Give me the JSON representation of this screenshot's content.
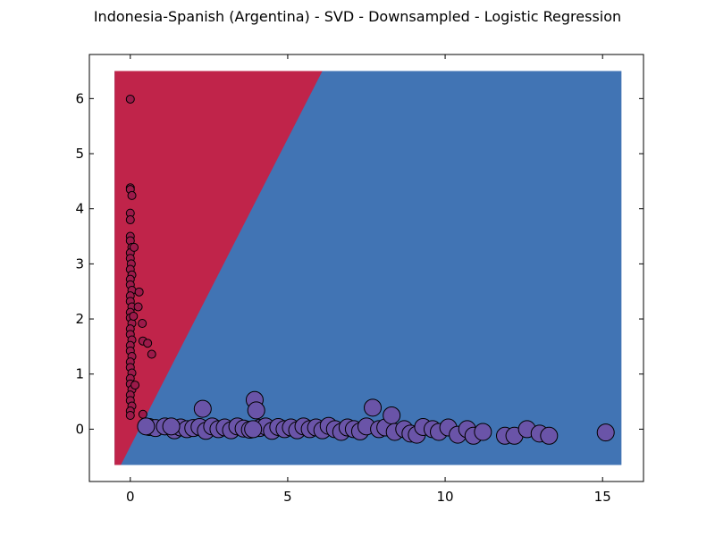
{
  "chart_data": {
    "type": "scatter",
    "title": "Indonesia-Spanish (Argentina) - SVD - Downsampled - Logistic Regression",
    "xlabel": "",
    "ylabel": "",
    "xlim": [
      -1.3,
      16.3
    ],
    "ylim": [
      -0.95,
      6.8
    ],
    "xticks": [
      0,
      5,
      10,
      15
    ],
    "yticks": [
      0,
      1,
      2,
      3,
      4,
      5,
      6
    ],
    "grid": false,
    "decision_regions": {
      "extent": {
        "x": [
          -0.5,
          15.6
        ],
        "y": [
          -0.65,
          6.5
        ]
      },
      "boundary": [
        [
          -0.3,
          -0.65
        ],
        [
          6.1,
          6.5
        ]
      ],
      "left_region_color": "#c0244a",
      "right_region_color": "#4174b4"
    },
    "series": [
      {
        "color": "#9c1a4a",
        "points": [
          [
            0.0,
            5.99
          ],
          [
            0.0,
            4.38
          ],
          [
            0.0,
            4.35
          ],
          [
            0.05,
            4.24
          ],
          [
            0.0,
            3.92
          ],
          [
            0.0,
            3.8
          ],
          [
            0.0,
            3.5
          ],
          [
            0.0,
            3.42
          ],
          [
            0.05,
            3.3
          ],
          [
            0.0,
            3.2
          ],
          [
            0.0,
            3.1
          ],
          [
            0.03,
            3.0
          ],
          [
            0.0,
            2.9
          ],
          [
            0.05,
            2.8
          ],
          [
            0.0,
            2.72
          ],
          [
            0.0,
            2.62
          ],
          [
            0.05,
            2.52
          ],
          [
            0.0,
            2.42
          ],
          [
            0.0,
            2.32
          ],
          [
            0.05,
            2.22
          ],
          [
            0.0,
            2.12
          ],
          [
            0.0,
            2.02
          ],
          [
            0.05,
            1.92
          ],
          [
            0.0,
            1.82
          ],
          [
            0.0,
            1.72
          ],
          [
            0.05,
            1.62
          ],
          [
            0.0,
            1.52
          ],
          [
            0.0,
            1.42
          ],
          [
            0.05,
            1.32
          ],
          [
            0.0,
            1.22
          ],
          [
            0.0,
            1.12
          ],
          [
            0.05,
            1.02
          ],
          [
            0.0,
            0.92
          ],
          [
            0.0,
            0.82
          ],
          [
            0.05,
            0.72
          ],
          [
            0.0,
            0.62
          ],
          [
            0.0,
            0.52
          ],
          [
            0.05,
            0.42
          ],
          [
            0.0,
            0.33
          ],
          [
            0.0,
            0.25
          ],
          [
            0.28,
            2.49
          ],
          [
            0.25,
            2.22
          ],
          [
            0.38,
            1.92
          ],
          [
            0.4,
            1.6
          ],
          [
            0.55,
            1.56
          ],
          [
            0.68,
            1.36
          ],
          [
            0.4,
            0.27
          ],
          [
            0.15,
            0.8
          ],
          [
            0.12,
            3.3
          ],
          [
            0.1,
            2.05
          ]
        ]
      },
      {
        "color": "#6a54a8",
        "points": [
          [
            0.6,
            0.04
          ],
          [
            0.8,
            0.02
          ],
          [
            1.1,
            0.05
          ],
          [
            1.4,
            -0.02
          ],
          [
            1.6,
            0.03
          ],
          [
            1.8,
            0.0
          ],
          [
            2.0,
            0.02
          ],
          [
            2.2,
            0.04
          ],
          [
            2.3,
            0.37
          ],
          [
            2.4,
            -0.03
          ],
          [
            2.6,
            0.05
          ],
          [
            2.8,
            0.0
          ],
          [
            3.0,
            0.03
          ],
          [
            3.2,
            -0.02
          ],
          [
            3.4,
            0.05
          ],
          [
            3.6,
            0.01
          ],
          [
            3.8,
            -0.01
          ],
          [
            3.95,
            0.53
          ],
          [
            4.0,
            0.34
          ],
          [
            4.1,
            0.02
          ],
          [
            4.3,
            0.05
          ],
          [
            4.5,
            -0.03
          ],
          [
            4.7,
            0.04
          ],
          [
            4.9,
            0.0
          ],
          [
            5.1,
            0.03
          ],
          [
            5.3,
            -0.02
          ],
          [
            5.5,
            0.05
          ],
          [
            5.7,
            0.0
          ],
          [
            5.9,
            0.03
          ],
          [
            6.1,
            -0.02
          ],
          [
            6.3,
            0.06
          ],
          [
            6.5,
            0.0
          ],
          [
            6.7,
            -0.05
          ],
          [
            6.9,
            0.03
          ],
          [
            7.1,
            0.0
          ],
          [
            7.3,
            -0.04
          ],
          [
            7.5,
            0.05
          ],
          [
            7.7,
            0.39
          ],
          [
            7.9,
            0.0
          ],
          [
            8.1,
            0.03
          ],
          [
            8.3,
            0.25
          ],
          [
            8.4,
            -0.05
          ],
          [
            8.7,
            0.0
          ],
          [
            8.9,
            -0.08
          ],
          [
            9.1,
            -0.1
          ],
          [
            9.3,
            0.04
          ],
          [
            9.6,
            0.0
          ],
          [
            9.8,
            -0.05
          ],
          [
            10.1,
            0.03
          ],
          [
            10.4,
            -0.1
          ],
          [
            10.7,
            0.0
          ],
          [
            10.9,
            -0.12
          ],
          [
            11.2,
            -0.05
          ],
          [
            11.9,
            -0.12
          ],
          [
            12.2,
            -0.12
          ],
          [
            12.6,
            0.0
          ],
          [
            13.0,
            -0.08
          ],
          [
            13.3,
            -0.12
          ],
          [
            15.1,
            -0.06
          ],
          [
            0.5,
            0.05
          ],
          [
            1.3,
            0.05
          ],
          [
            3.9,
            0.0
          ]
        ]
      }
    ]
  }
}
